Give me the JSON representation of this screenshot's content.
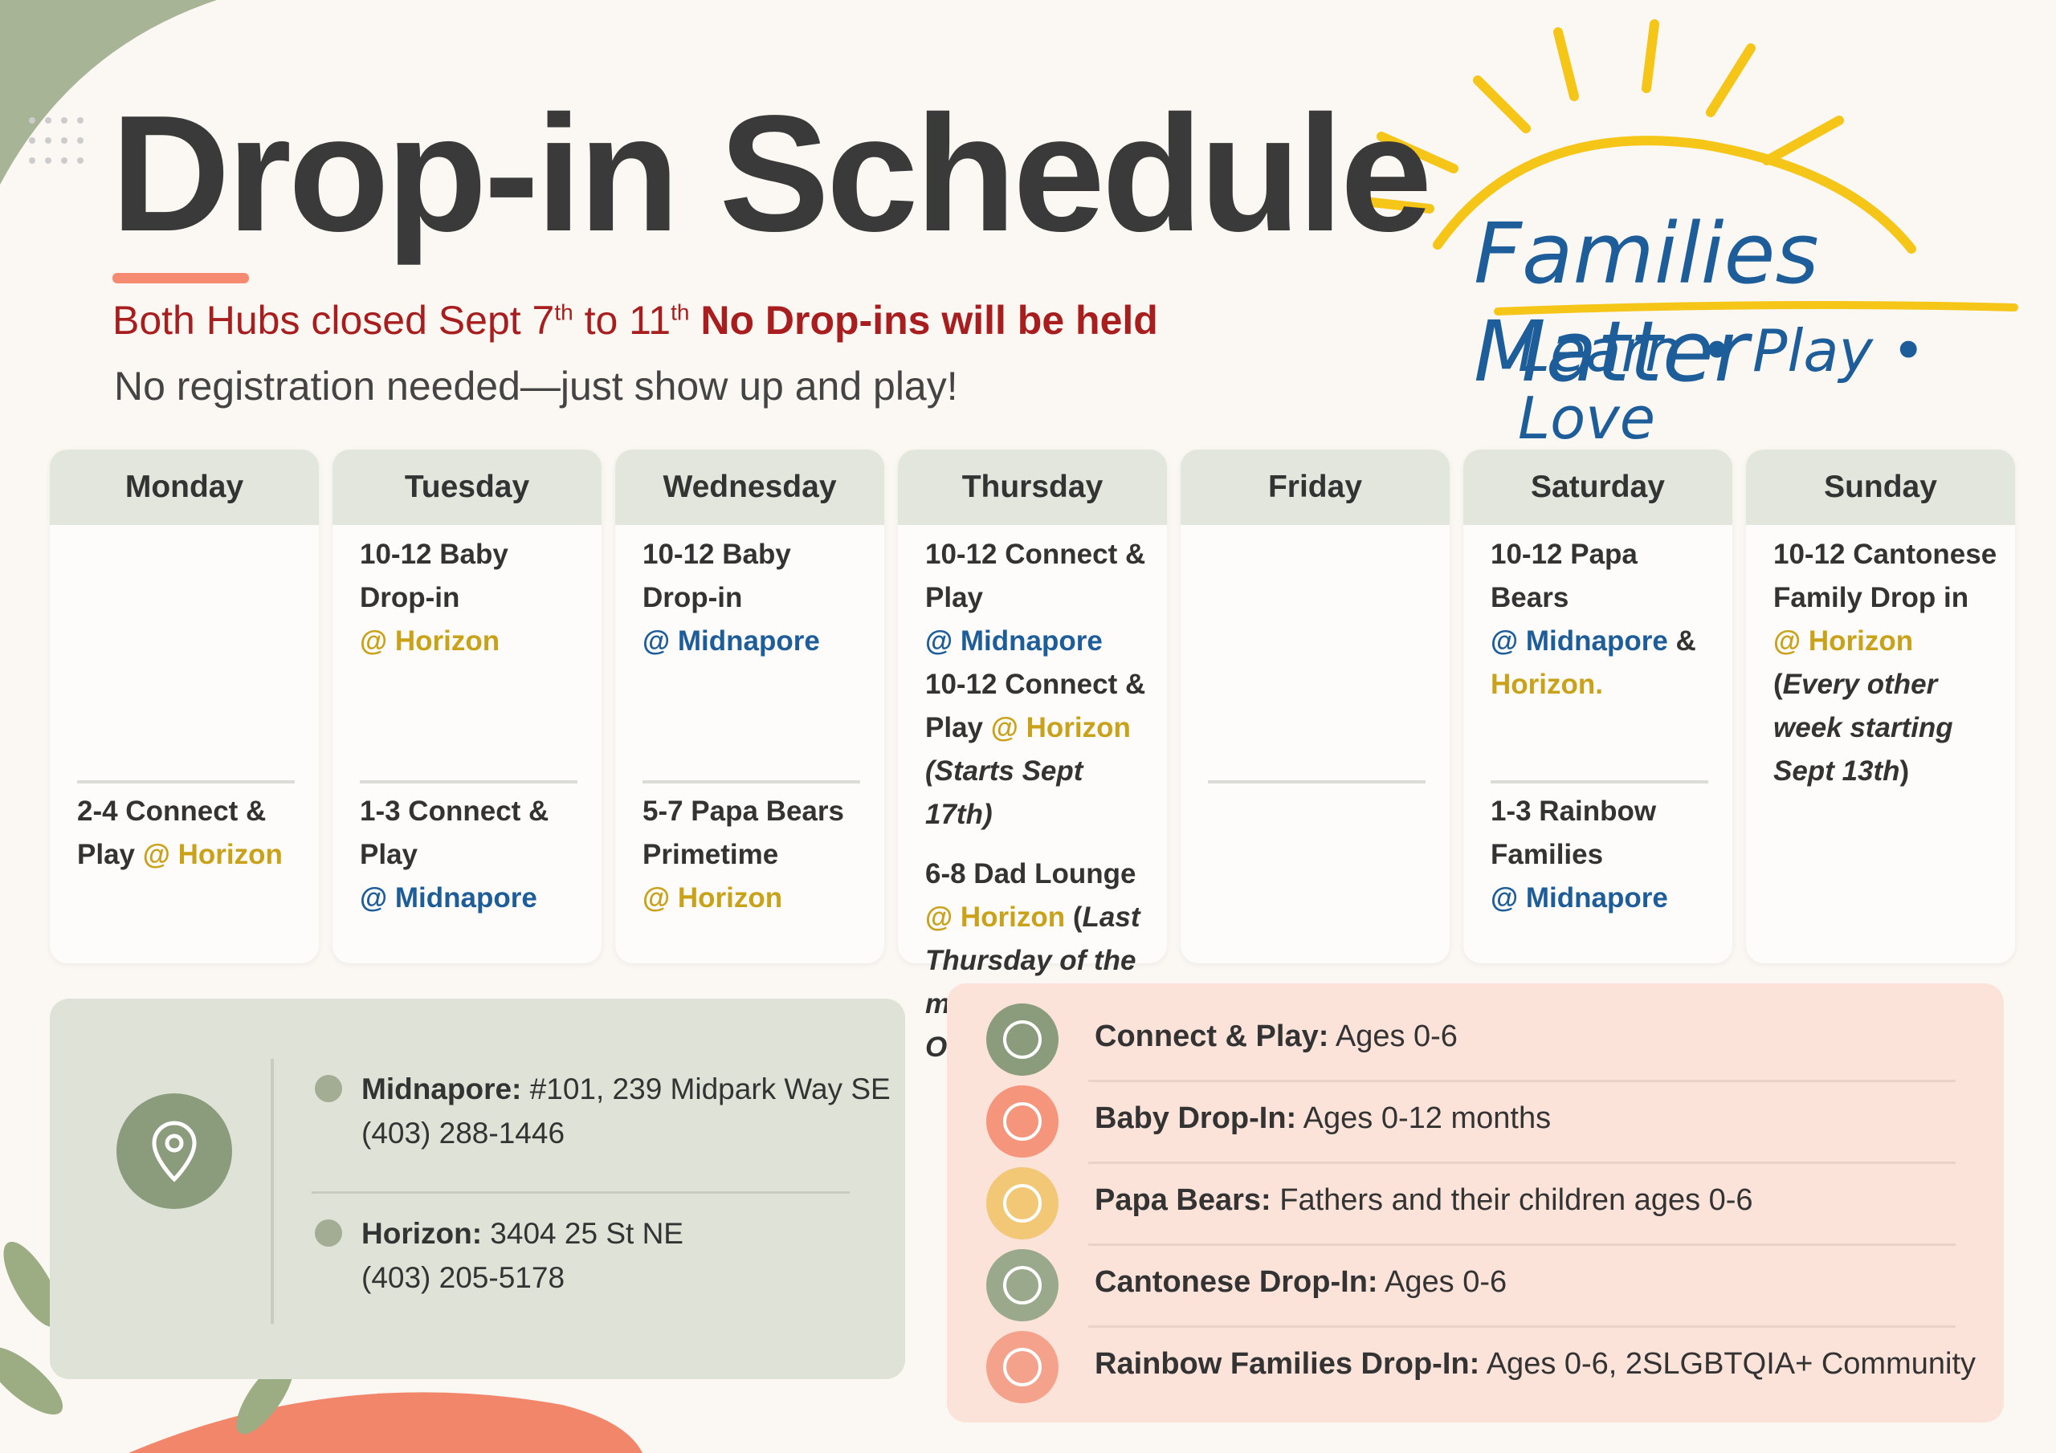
{
  "header": {
    "title": "Drop-in Schedule",
    "notice_start": "Both Hubs closed Sept 7",
    "notice_sup1": "th",
    "notice_mid": " to 11",
    "notice_sup2": "th",
    "notice_bold": "No Drop-ins will be held",
    "subtitle": "No registration needed—just show up and play!"
  },
  "logo": {
    "name": "Families Matter",
    "tagline": "Learn • Play • Love"
  },
  "days": [
    {
      "name": "Monday",
      "divider": true,
      "top": [],
      "bottom": [
        [
          {
            "text": "2-4 Connect & Play "
          },
          {
            "text": "@ Horizon",
            "color": "#c9a21a"
          }
        ]
      ]
    },
    {
      "name": "Tuesday",
      "divider": true,
      "top": [
        [
          {
            "text": "10-12 Baby Drop-in"
          }
        ],
        [
          {
            "text": "@ Horizon",
            "color": "#c9a21a"
          }
        ]
      ],
      "bottom": [
        [
          {
            "text": "1-3 Connect & Play"
          }
        ],
        [
          {
            "text": "@ Midnapore",
            "color": "#1d5d99"
          }
        ]
      ]
    },
    {
      "name": "Wednesday",
      "divider": true,
      "top": [
        [
          {
            "text": "10-12 Baby Drop-in"
          }
        ],
        [
          {
            "text": "@ Midnapore",
            "color": "#1d5d99"
          }
        ]
      ],
      "bottom": [
        [
          {
            "text": "5-7 Papa Bears Primetime"
          }
        ],
        [
          {
            "text": "@ Horizon",
            "color": "#c9a21a"
          }
        ]
      ]
    },
    {
      "name": "Thursday",
      "divider": false,
      "top": [
        [
          {
            "text": "10-12 Connect & Play"
          }
        ],
        [
          {
            "text": "@ Midnapore",
            "color": "#1d5d99"
          }
        ],
        [
          {
            "text": "10-12 Connect & Play "
          },
          {
            "text": "@ Horizon",
            "color": "#c9a21a"
          }
        ],
        [
          {
            "text": "(Starts Sept 17th)",
            "italic": true
          }
        ]
      ],
      "bottom": [
        [
          {
            "text": "6-8 Dad Lounge "
          },
          {
            "text": "@ Horizon",
            "color": "#c9a21a"
          },
          {
            "text": " ("
          },
          {
            "text": "Last Thursday of the month. Adult Only",
            "italic": true
          },
          {
            "text": ")"
          }
        ]
      ]
    },
    {
      "name": "Friday",
      "divider": true,
      "top": [],
      "bottom": []
    },
    {
      "name": "Saturday",
      "divider": true,
      "top": [
        [
          {
            "text": "10-12 Papa Bears"
          }
        ],
        [
          {
            "text": "@ Midnapore",
            "color": "#1d5d99"
          },
          {
            "text": " &"
          }
        ],
        [
          {
            "text": "Horizon.",
            "color": "#c9a21a"
          }
        ]
      ],
      "bottom": [
        [
          {
            "text": "1-3 Rainbow Families"
          }
        ],
        [
          {
            "text": "@ Midnapore",
            "color": "#1d5d99"
          }
        ]
      ]
    },
    {
      "name": "Sunday",
      "divider": false,
      "top": [
        [
          {
            "text": "10-12 Cantonese Family Drop in"
          }
        ],
        [
          {
            "text": "@ Horizon",
            "color": "#c9a21a"
          }
        ],
        [
          {
            "text": "("
          },
          {
            "text": "Every other week starting Sept 13th",
            "italic": true
          },
          {
            "text": ")"
          }
        ]
      ],
      "bottom": []
    }
  ],
  "locations": [
    {
      "name": "Midnapore:",
      "address": " #101, 239 Midpark Way SE",
      "phone": "(403) 288-1446"
    },
    {
      "name": "Horizon:",
      "address": " 3404 25 St NE",
      "phone": "(403) 205-5178"
    }
  ],
  "legend": [
    {
      "name": "Connect & Play:",
      "desc": " Ages 0-6",
      "color": "#8a9c7c"
    },
    {
      "name": "Baby Drop-In:",
      "desc": " Ages 0-12 months",
      "color": "#f4957c"
    },
    {
      "name": "Papa Bears:",
      "desc": " Fathers and their children ages 0-6",
      "color": "#f2c877"
    },
    {
      "name": "Cantonese Drop-In:",
      "desc": " Ages 0-6",
      "color": "#9aa98c"
    },
    {
      "name": "Rainbow Families Drop-In:",
      "desc": " Ages 0-6, 2SLGBTQIA+ Community",
      "color": "#f4a28c"
    }
  ]
}
